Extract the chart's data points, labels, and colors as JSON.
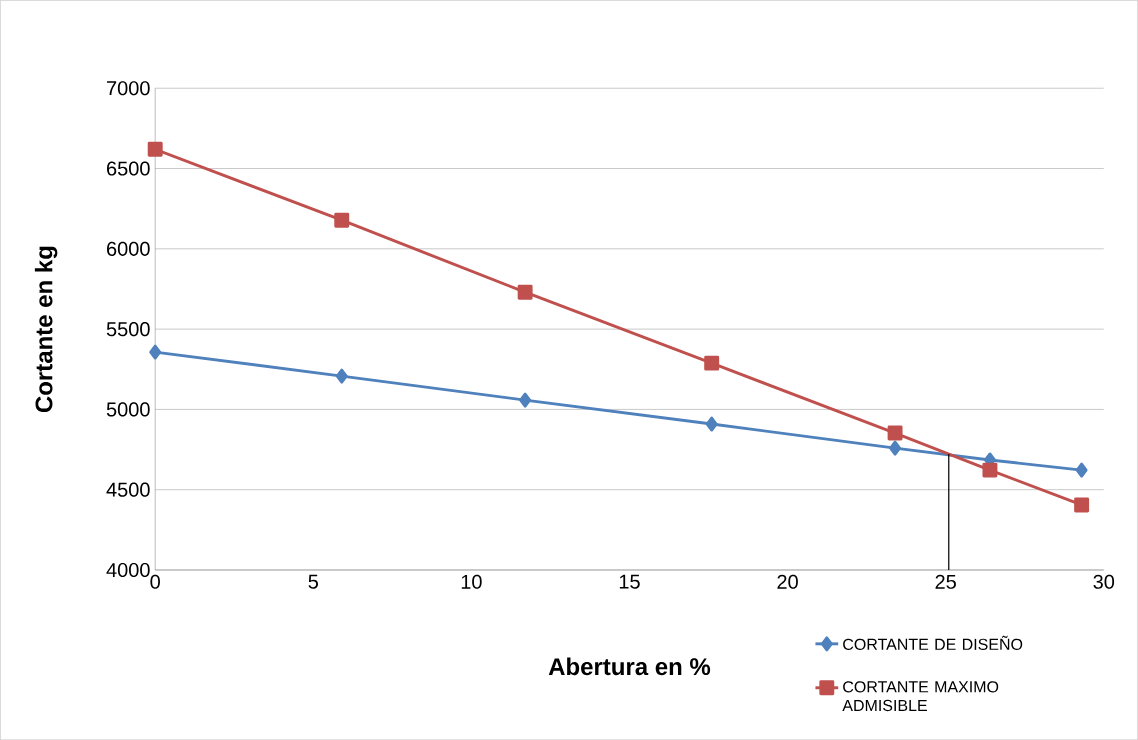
{
  "chart_data": {
    "type": "line",
    "xlabel": "Abertura en %",
    "ylabel": "Cortante  en kg",
    "x": [
      0,
      5.9,
      11.7,
      17.6,
      23.4,
      26.4,
      29.3
    ],
    "series": [
      {
        "name": "CORTANTE DE DISEÑO",
        "color": "#4f81bd",
        "marker": "diamond",
        "values": [
          5357,
          5207,
          5058,
          4909,
          4759,
          4685,
          4622
        ]
      },
      {
        "name": "CORTANTE MAXIMO ADMISIBLE",
        "color": "#c0504d",
        "marker": "square",
        "values": [
          6620,
          6178,
          5730,
          5288,
          4853,
          4622,
          4405
        ]
      }
    ],
    "xlim": [
      0,
      30
    ],
    "xticks": [
      0,
      5,
      10,
      15,
      20,
      25,
      30
    ],
    "ylim": [
      4000,
      7000
    ],
    "yticks": [
      4000,
      4500,
      5000,
      5500,
      6000,
      6500,
      7000
    ],
    "grid": "y",
    "legend": "bottom right",
    "ref_lines": [
      {
        "axis": "x",
        "value": 25.1,
        "color": "#000000"
      }
    ]
  }
}
